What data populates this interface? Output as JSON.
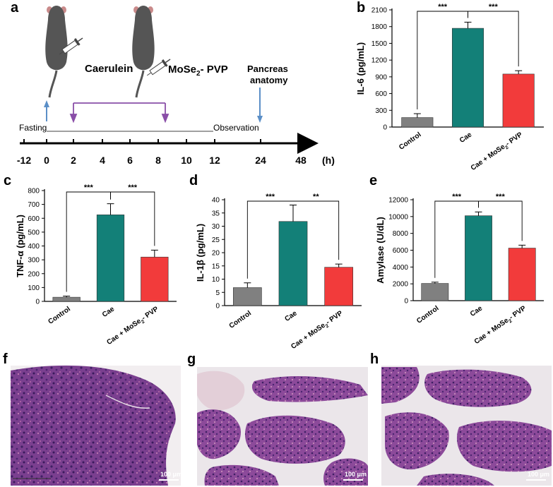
{
  "panels": {
    "a": "a",
    "b": "b",
    "c": "c",
    "d": "d",
    "e": "e",
    "f": "f",
    "g": "g",
    "h": "h"
  },
  "scheme": {
    "caerulein_label": "Caerulein",
    "drug_label_main": "MoSe",
    "drug_label_sub": "2",
    "drug_label_tail": "- PVP",
    "pancreas_label_1": "Pancreas",
    "pancreas_label_2": "anatomy",
    "fasting_label": "Fasting",
    "observation_label": "Observation",
    "axis_ticks": [
      "-12",
      "0",
      "2",
      "4",
      "6",
      "8",
      "10",
      "12",
      "24",
      "48"
    ],
    "axis_unit": "(h)",
    "colors": {
      "mouse": "#555555",
      "arrow_blue": "#5b8fc7",
      "bracket_purple": "#8a4fa8"
    }
  },
  "chart_data": [
    {
      "id": "b",
      "type": "bar",
      "categories": [
        "Control",
        "Cae",
        "Cae + MoSe2- PVP"
      ],
      "values": [
        170,
        1770,
        950
      ],
      "errors": [
        70,
        110,
        60
      ],
      "ylabel": "IL-6 (pg/mL)",
      "ylim": [
        0,
        2100
      ],
      "yticks": [
        "0",
        "300",
        "600",
        "900",
        "1200",
        "1500",
        "1800",
        "2100"
      ],
      "significance": [
        "***",
        "***"
      ],
      "colors": [
        "#808080",
        "#138078",
        "#f23b3b"
      ]
    },
    {
      "id": "c",
      "type": "bar",
      "categories": [
        "Control",
        "Cae",
        "Cae + MoSe2- PVP"
      ],
      "values": [
        30,
        625,
        320
      ],
      "errors": [
        8,
        80,
        50
      ],
      "ylabel": "TNF-α (pg/mL)",
      "ylim": [
        0,
        800
      ],
      "yticks": [
        "0",
        "100",
        "200",
        "300",
        "400",
        "500",
        "600",
        "700",
        "800"
      ],
      "significance": [
        "***",
        "***"
      ],
      "colors": [
        "#808080",
        "#138078",
        "#f23b3b"
      ]
    },
    {
      "id": "d",
      "type": "bar",
      "categories": [
        "Control",
        "Cae",
        "Cae + MoSe2- PVP"
      ],
      "values": [
        6.8,
        31.8,
        14.5
      ],
      "errors": [
        1.8,
        6.2,
        1.2
      ],
      "ylabel": "IL-1β (pg/mL)",
      "ylim": [
        0,
        40
      ],
      "yticks": [
        "0",
        "5",
        "10",
        "15",
        "20",
        "25",
        "30",
        "35",
        "40"
      ],
      "significance": [
        "***",
        "**"
      ],
      "colors": [
        "#808080",
        "#138078",
        "#f23b3b"
      ]
    },
    {
      "id": "e",
      "type": "bar",
      "categories": [
        "Control",
        "Cae",
        "Cae + MoSe2- PVP"
      ],
      "values": [
        2050,
        10100,
        6250
      ],
      "errors": [
        150,
        450,
        350
      ],
      "ylabel": "Amylase (U/dL)",
      "ylim": [
        0,
        12000
      ],
      "yticks": [
        "0",
        "2000",
        "4000",
        "6000",
        "8000",
        "10000",
        "12000"
      ],
      "significance": [
        "***",
        "***"
      ],
      "colors": [
        "#808080",
        "#138078",
        "#f23b3b"
      ]
    }
  ],
  "histology": [
    {
      "id": "f",
      "scale_label": "100 μm"
    },
    {
      "id": "g",
      "scale_label": "100 μm"
    },
    {
      "id": "h",
      "scale_label": "100 μm"
    }
  ]
}
